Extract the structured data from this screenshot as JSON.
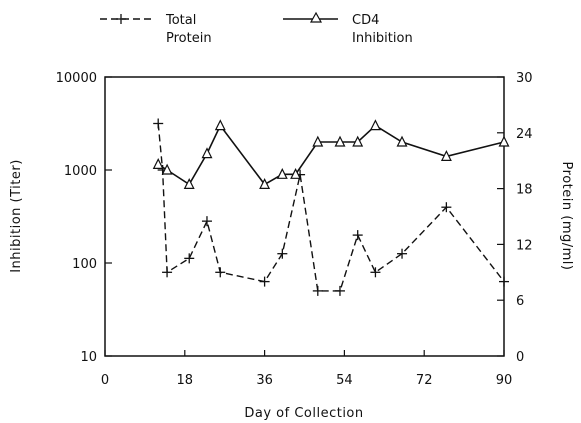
{
  "chart_data": {
    "type": "line",
    "title": "",
    "xlabel": "Day of Collection",
    "ylabel_left": "Inhibition (Titer)",
    "ylabel_right": "Protein (mg/ml)",
    "x_ticks": [
      "0",
      "18",
      "36",
      "54",
      "72",
      "90"
    ],
    "xlim": [
      0,
      90
    ],
    "y_left_scale": "log",
    "y_left_ticks": [
      "10",
      "100",
      "1000",
      "10000"
    ],
    "y_left_lim": [
      10,
      10000
    ],
    "y_right_ticks": [
      "0",
      "6",
      "12",
      "18",
      "24",
      "30"
    ],
    "y_right_lim": [
      0,
      30
    ],
    "grid": false,
    "legend_position": "top",
    "series": [
      {
        "name": "Total Protein",
        "axis": "right",
        "style": "dashed",
        "marker": "plus",
        "x": [
          12,
          13,
          14,
          19,
          23,
          26,
          36,
          40,
          44,
          48,
          53,
          57,
          61,
          67,
          77,
          90
        ],
        "y": [
          25,
          20,
          9,
          10.5,
          14.5,
          9,
          8,
          11,
          19.5,
          7,
          7,
          13,
          9,
          11,
          16,
          8
        ]
      },
      {
        "name": "CD4 Inhibition",
        "axis": "left",
        "style": "solid",
        "marker": "triangle",
        "x": [
          12,
          14,
          19,
          23,
          26,
          36,
          40,
          43,
          48,
          53,
          57,
          61,
          67,
          77,
          90
        ],
        "y": [
          1150,
          1000,
          700,
          1500,
          3000,
          700,
          900,
          900,
          2000,
          2000,
          2000,
          3000,
          2000,
          1400,
          2000
        ]
      }
    ],
    "legend": [
      {
        "line1": "Total",
        "line2": "Protein"
      },
      {
        "line1": "CD4",
        "line2": "Inhibition"
      }
    ]
  }
}
